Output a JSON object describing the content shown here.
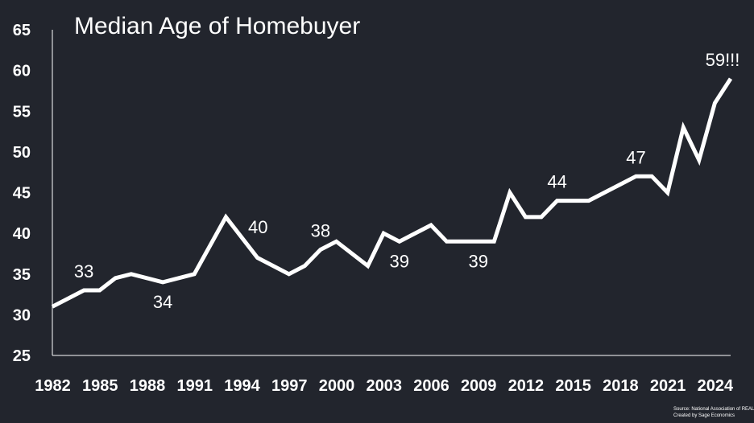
{
  "chart_data": {
    "type": "line",
    "title": "Median Age of Homebuyer",
    "xlabel": "",
    "ylabel": "",
    "ylim": [
      25,
      65
    ],
    "xlim": [
      1982,
      2025
    ],
    "yticks": [
      25,
      30,
      35,
      40,
      45,
      50,
      55,
      60,
      65
    ],
    "xticks": [
      1982,
      1985,
      1988,
      1991,
      1994,
      1997,
      2000,
      2003,
      2006,
      2009,
      2012,
      2015,
      2018,
      2021,
      2024
    ],
    "grid": false,
    "legend": "none",
    "line_color": "#ffffff",
    "series": [
      {
        "x": [
          1982,
          1984,
          1985,
          1986,
          1987,
          1989,
          1991,
          1993,
          1995,
          1997,
          1998,
          1999,
          2000,
          2002,
          2003,
          2004,
          2006,
          2007,
          2008,
          2009,
          2010,
          2011,
          2012,
          2013,
          2014,
          2015,
          2016,
          2017,
          2018,
          2019,
          2020,
          2021,
          2022,
          2023,
          2024,
          2025
        ],
        "values": [
          31,
          33,
          33,
          34.5,
          35,
          34,
          35,
          42,
          37,
          35,
          36,
          38,
          39,
          36,
          40,
          39,
          41,
          39,
          39,
          39,
          39,
          45,
          42,
          42,
          44,
          44,
          44,
          45,
          46,
          47,
          47,
          45,
          53,
          49,
          56,
          59
        ]
      }
    ],
    "annotations": [
      {
        "text": "33",
        "x": 1984,
        "y": 33,
        "position": "above"
      },
      {
        "text": "34",
        "x": 1989,
        "y": 34,
        "position": "below"
      },
      {
        "text": "40",
        "x": 1994,
        "y": 40,
        "position": "right"
      },
      {
        "text": "38",
        "x": 1999,
        "y": 38,
        "position": "above"
      },
      {
        "text": "39",
        "x": 2004,
        "y": 39,
        "position": "below"
      },
      {
        "text": "39",
        "x": 2009,
        "y": 39,
        "position": "below"
      },
      {
        "text": "44",
        "x": 2014,
        "y": 44,
        "position": "above"
      },
      {
        "text": "47",
        "x": 2019,
        "y": 47,
        "position": "above"
      },
      {
        "text": "59!!!",
        "x": 2025,
        "y": 59,
        "position": "above"
      }
    ],
    "source": [
      "Source: National Association of REALTORS",
      "Created by Sage Economics"
    ]
  }
}
